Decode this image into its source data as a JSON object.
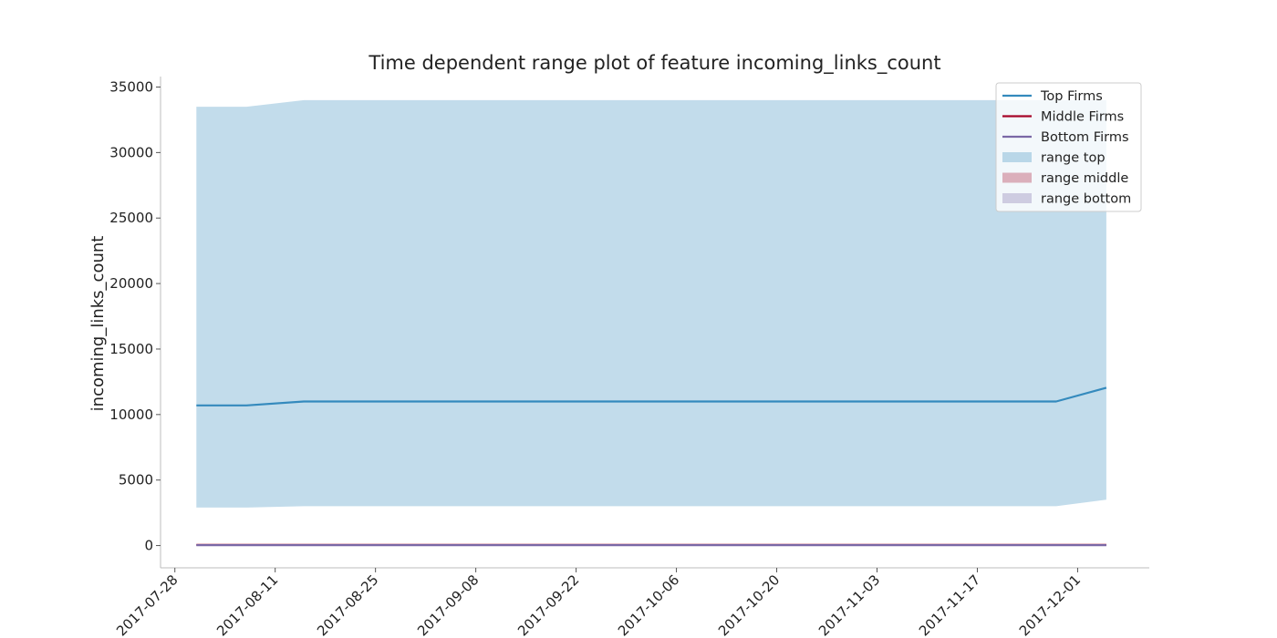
{
  "chart_data": {
    "type": "line",
    "title": "Time dependent range plot of feature incoming_links_count",
    "xlabel": "",
    "ylabel": "incoming_links_count",
    "x_type": "date",
    "x": [
      "2017-07-31",
      "2017-08-07",
      "2017-08-15",
      "2017-08-22",
      "2017-08-29",
      "2017-09-05",
      "2017-09-12",
      "2017-09-19",
      "2017-09-26",
      "2017-10-03",
      "2017-10-10",
      "2017-10-17",
      "2017-10-24",
      "2017-10-31",
      "2017-11-07",
      "2017-11-14",
      "2017-11-21",
      "2017-11-28",
      "2017-12-05"
    ],
    "xlim": [
      "2017-07-26",
      "2017-12-11"
    ],
    "xticks": [
      "2017-07-28",
      "2017-08-11",
      "2017-08-25",
      "2017-09-08",
      "2017-09-22",
      "2017-10-06",
      "2017-10-20",
      "2017-11-03",
      "2017-11-17",
      "2017-12-01"
    ],
    "ylim": [
      -1700,
      35800
    ],
    "yticks": [
      0,
      5000,
      10000,
      15000,
      20000,
      25000,
      30000,
      35000
    ],
    "grid": false,
    "legend_position": "top-right",
    "series": [
      {
        "name": "Top Firms",
        "kind": "line",
        "color": "#348abd",
        "values": [
          10700,
          10700,
          11000,
          11000,
          11000,
          11000,
          11000,
          11000,
          11000,
          11000,
          11000,
          11000,
          11000,
          11000,
          11000,
          11000,
          11000,
          11000,
          12050
        ]
      },
      {
        "name": "Middle Firms",
        "kind": "line",
        "color": "#a60628",
        "values": [
          50,
          50,
          50,
          50,
          50,
          50,
          50,
          50,
          50,
          50,
          50,
          50,
          50,
          50,
          50,
          50,
          50,
          50,
          50
        ]
      },
      {
        "name": "Bottom Firms",
        "kind": "line",
        "color": "#7a68a6",
        "values": [
          30,
          30,
          30,
          30,
          30,
          30,
          30,
          30,
          30,
          30,
          30,
          30,
          30,
          30,
          30,
          30,
          30,
          30,
          30
        ]
      }
    ],
    "ranges": [
      {
        "name": "range top",
        "kind": "band",
        "color": "#348abd",
        "opacity": 0.3,
        "low": [
          2900,
          2900,
          3000,
          3000,
          3000,
          3000,
          3000,
          3000,
          3000,
          3000,
          3000,
          3000,
          3000,
          3000,
          3000,
          3000,
          3000,
          3000,
          3500
        ],
        "high": [
          33500,
          33500,
          34000,
          34000,
          34000,
          34000,
          34000,
          34000,
          34000,
          34000,
          34000,
          34000,
          34000,
          34000,
          34000,
          34000,
          34000,
          34000,
          34000
        ]
      },
      {
        "name": "range middle",
        "kind": "band",
        "color": "#a60628",
        "opacity": 0.3,
        "low": [
          20,
          20,
          20,
          20,
          20,
          20,
          20,
          20,
          20,
          20,
          20,
          20,
          20,
          20,
          20,
          20,
          20,
          20,
          20
        ],
        "high": [
          90,
          90,
          90,
          90,
          90,
          90,
          90,
          90,
          90,
          90,
          90,
          90,
          90,
          90,
          90,
          90,
          90,
          90,
          90
        ]
      },
      {
        "name": "range bottom",
        "kind": "band",
        "color": "#7a68a6",
        "opacity": 0.3,
        "low": [
          5,
          5,
          5,
          5,
          5,
          5,
          5,
          5,
          5,
          5,
          5,
          5,
          5,
          5,
          5,
          5,
          5,
          5,
          5
        ],
        "high": [
          60,
          60,
          60,
          60,
          60,
          60,
          60,
          60,
          60,
          60,
          60,
          60,
          60,
          60,
          60,
          60,
          60,
          60,
          60
        ]
      }
    ]
  }
}
